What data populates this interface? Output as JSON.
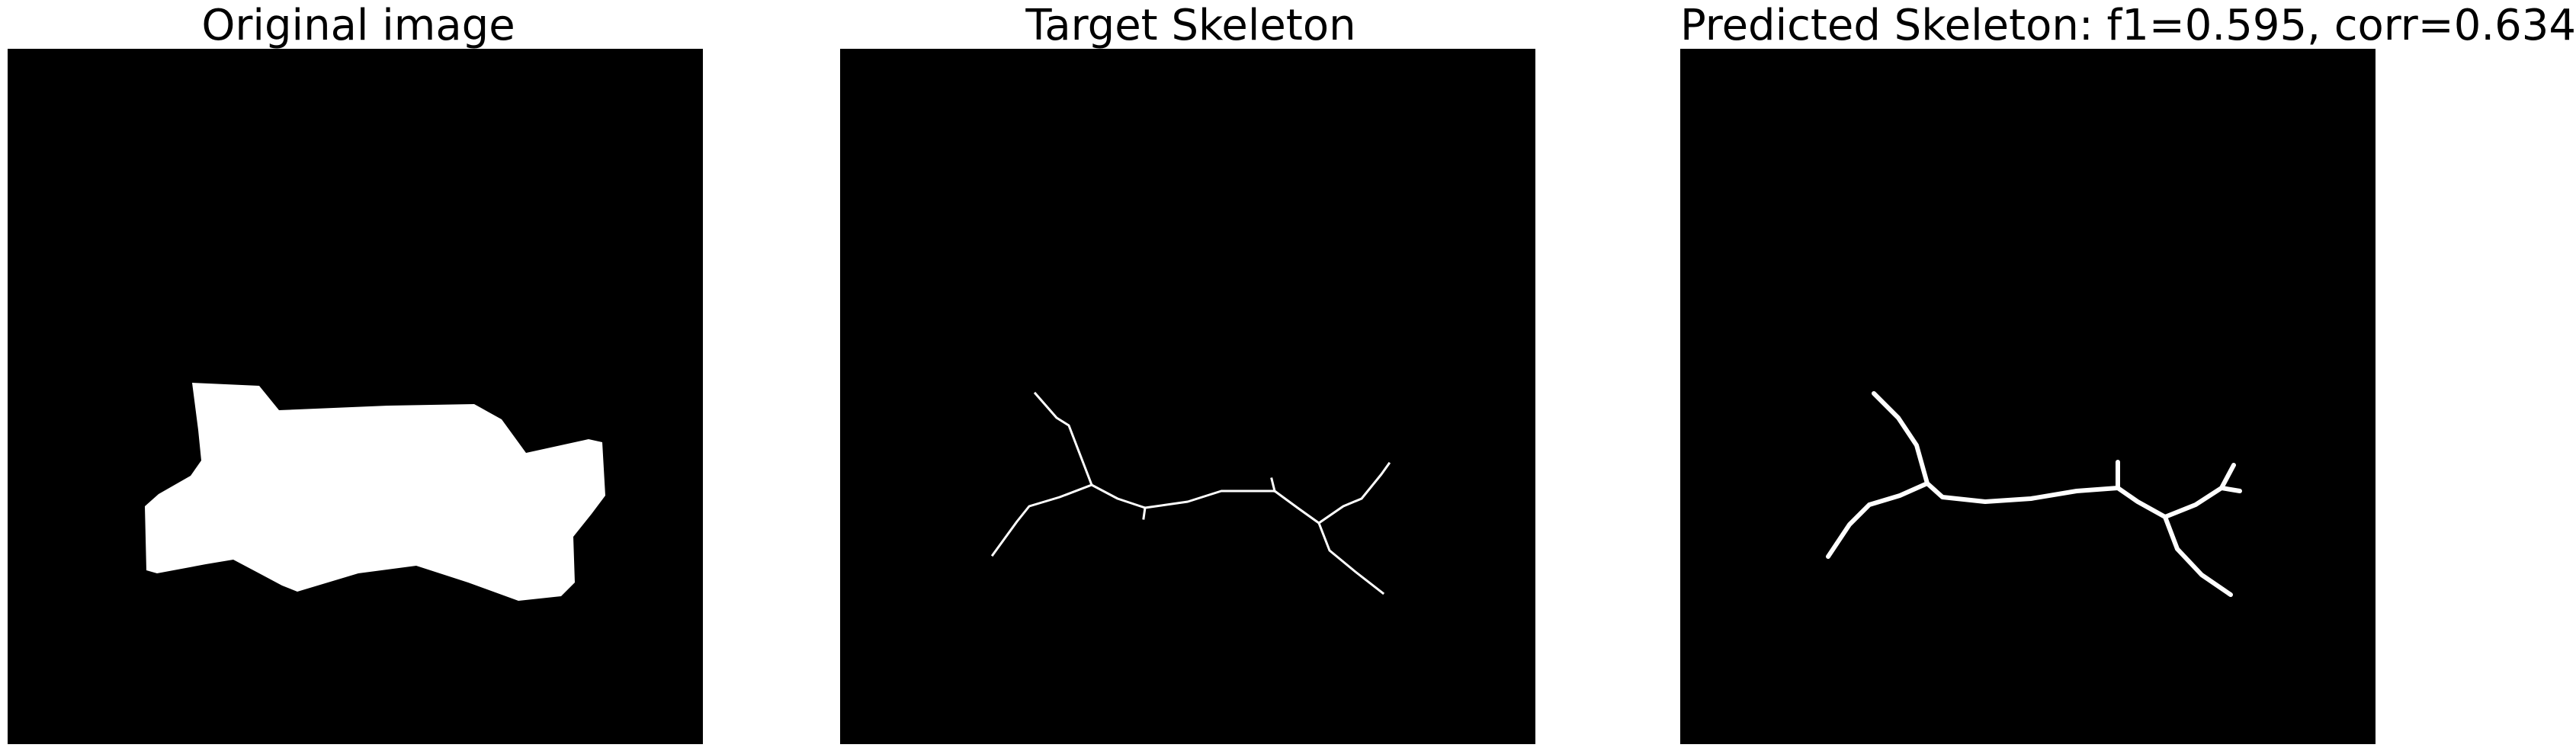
{
  "panels": [
    {
      "title": "Original image"
    },
    {
      "title": "Target Skeleton"
    },
    {
      "title": "Predicted Skeleton: f1=0.595, corr=0.634"
    }
  ],
  "colors": {
    "background": "#000000",
    "foreground": "#ffffff",
    "page": "#ffffff"
  }
}
